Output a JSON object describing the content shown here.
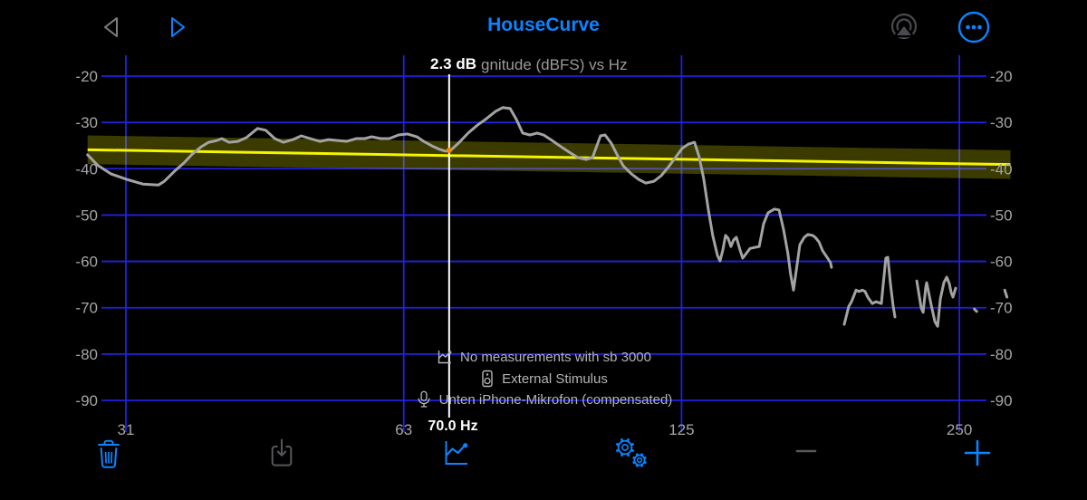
{
  "nav": {
    "title": "HouseCurve",
    "icons": [
      "back-triangle-icon",
      "play-triangle-icon",
      "airplay-icon",
      "more-ellipsis-icon"
    ]
  },
  "cursor_readout": {
    "delta": "2.3 dB",
    "freq": "70.0 Hz"
  },
  "annotations": [
    {
      "icon": "chart-line-icon",
      "text": "No measurements with sb 3000"
    },
    {
      "icon": "speaker-icon",
      "text": "External Stimulus"
    },
    {
      "icon": "microphone-icon",
      "text": "Unten iPhone-Mikrofon (compensated)"
    }
  ],
  "toolbar": [
    {
      "name": "delete",
      "icon": "trash-icon",
      "color": "#0a84ff"
    },
    {
      "name": "export",
      "icon": "export-download-icon",
      "color": "#58585c"
    },
    {
      "name": "chart",
      "icon": "chart-button-icon",
      "color": "#0a84ff"
    },
    {
      "name": "settings",
      "icon": "gears-icon",
      "color": "#0a84ff"
    },
    {
      "name": "zoom-out",
      "icon": "minus-icon",
      "color": "#58585c"
    },
    {
      "name": "zoom-in",
      "icon": "plus-icon",
      "color": "#0a84ff"
    }
  ],
  "colors": {
    "accent": "#0a84ff",
    "grid": "#2121e0",
    "curve": "#a3a3a3",
    "target": "#f5f500",
    "band": "rgba(255,255,0,0.23)",
    "cursor_line": "#ffffff",
    "cursor_dot": "#ff8800",
    "axis_text": "#a5a5a8"
  },
  "chart_data": {
    "type": "line",
    "title": "Magnitude (dBFS) vs Hz",
    "xlabel": "Hz",
    "ylabel": "dBFS",
    "grid": true,
    "x_axis": {
      "scale": "log2",
      "range_hz": [
        28.4,
        284
      ],
      "ticks": [
        {
          "label": "31",
          "hz": 31.25
        },
        {
          "label": "63",
          "hz": 62.5
        },
        {
          "label": "125",
          "hz": 125
        },
        {
          "label": "250",
          "hz": 250
        }
      ]
    },
    "y_axis": {
      "range_db": [
        -92.7,
        -15.5
      ],
      "ticks": [
        -20,
        -30,
        -40,
        -50,
        -60,
        -70,
        -80,
        -90
      ]
    },
    "cursor": {
      "hz": 70.0,
      "db_at_cursor": -36.0,
      "delta_db_label": "2.3 dB",
      "freq_label": "70.0 Hz"
    },
    "target": {
      "name": "house-curve-target",
      "start": {
        "hz": 28.4,
        "db": -35.9
      },
      "end": {
        "hz": 284,
        "db": -39.1
      },
      "tolerance_db": 3.1
    },
    "measurement": {
      "name": "magnitude-response",
      "segments": [
        [
          [
            28.4,
            -37.0
          ],
          [
            29.1,
            -39.2
          ],
          [
            30.1,
            -41.1
          ],
          [
            31.3,
            -42.3
          ],
          [
            32.6,
            -43.3
          ],
          [
            33.9,
            -43.5
          ],
          [
            34.4,
            -42.7
          ],
          [
            35.3,
            -40.5
          ],
          [
            36.1,
            -38.8
          ],
          [
            36.9,
            -36.8
          ],
          [
            37.7,
            -35.3
          ],
          [
            38.4,
            -34.3
          ],
          [
            39.2,
            -33.9
          ],
          [
            39.7,
            -33.5
          ],
          [
            40.4,
            -34.3
          ],
          [
            41.3,
            -34.1
          ],
          [
            42.2,
            -33.3
          ],
          [
            43.4,
            -31.3
          ],
          [
            44.3,
            -31.7
          ],
          [
            45.3,
            -33.5
          ],
          [
            46.3,
            -34.3
          ],
          [
            47.4,
            -33.7
          ],
          [
            48.4,
            -32.9
          ],
          [
            49.5,
            -33.5
          ],
          [
            50.7,
            -34.1
          ],
          [
            51.8,
            -33.7
          ],
          [
            53.0,
            -33.9
          ],
          [
            54.2,
            -34.1
          ],
          [
            55.5,
            -33.5
          ],
          [
            56.7,
            -33.5
          ],
          [
            57.7,
            -33.1
          ],
          [
            59.0,
            -33.5
          ],
          [
            60.3,
            -33.5
          ],
          [
            61.7,
            -32.7
          ],
          [
            63.1,
            -32.5
          ],
          [
            64.6,
            -33.1
          ],
          [
            65.7,
            -34.1
          ],
          [
            67.1,
            -35.1
          ],
          [
            68.3,
            -35.8
          ],
          [
            69.4,
            -36.2
          ],
          [
            70.3,
            -36.0
          ],
          [
            71.8,
            -34.3
          ],
          [
            73.4,
            -32.3
          ],
          [
            75.1,
            -30.6
          ],
          [
            76.8,
            -29.2
          ],
          [
            78.6,
            -27.6
          ],
          [
            80.0,
            -26.8
          ],
          [
            81.5,
            -27.0
          ],
          [
            82.8,
            -29.4
          ],
          [
            84.1,
            -32.3
          ],
          [
            85.6,
            -32.7
          ],
          [
            87.2,
            -32.3
          ],
          [
            88.6,
            -32.7
          ],
          [
            90.2,
            -33.7
          ],
          [
            92.3,
            -35.1
          ],
          [
            94.4,
            -36.4
          ],
          [
            96.5,
            -37.6
          ],
          [
            98.5,
            -38.0
          ],
          [
            100.1,
            -37.6
          ],
          [
            102.1,
            -32.9
          ],
          [
            103.3,
            -32.7
          ],
          [
            104.9,
            -34.5
          ],
          [
            106.6,
            -37.2
          ],
          [
            108.1,
            -39.4
          ],
          [
            110.3,
            -41.1
          ],
          [
            112.3,
            -42.3
          ],
          [
            114.3,
            -43.1
          ],
          [
            116.7,
            -42.7
          ],
          [
            118.8,
            -41.5
          ],
          [
            121.0,
            -39.6
          ],
          [
            123.5,
            -37.2
          ],
          [
            125.2,
            -35.6
          ],
          [
            127.1,
            -34.7
          ],
          [
            129.1,
            -34.3
          ],
          [
            130.6,
            -37.4
          ],
          [
            132.1,
            -42.1
          ],
          [
            133.6,
            -48.6
          ],
          [
            135.1,
            -54.4
          ],
          [
            136.7,
            -58.7
          ],
          [
            137.6,
            -59.9
          ],
          [
            138.5,
            -57.7
          ],
          [
            139.5,
            -54.4
          ],
          [
            140.4,
            -55.0
          ],
          [
            141.4,
            -56.8
          ],
          [
            142.3,
            -55.4
          ],
          [
            143.3,
            -54.8
          ],
          [
            144.6,
            -57.4
          ],
          [
            145.6,
            -59.3
          ],
          [
            146.9,
            -58.3
          ],
          [
            148.3,
            -57.2
          ],
          [
            150.0,
            -57.0
          ],
          [
            151.7,
            -56.8
          ],
          [
            153.4,
            -51.9
          ],
          [
            155.1,
            -49.5
          ],
          [
            157.6,
            -48.7
          ],
          [
            159.4,
            -48.9
          ],
          [
            161.2,
            -53.0
          ],
          [
            163.0,
            -58.3
          ],
          [
            164.1,
            -62.8
          ],
          [
            165.3,
            -66.2
          ],
          [
            166.7,
            -60.9
          ],
          [
            167.9,
            -56.4
          ],
          [
            169.8,
            -54.8
          ],
          [
            171.3,
            -54.2
          ],
          [
            173.3,
            -54.4
          ],
          [
            174.5,
            -54.8
          ],
          [
            176.1,
            -55.8
          ],
          [
            177.7,
            -57.7
          ],
          [
            179.7,
            -59.1
          ],
          [
            181.3,
            -60.3
          ],
          [
            181.7,
            -61.3
          ]
        ],
        [
          [
            187.6,
            -73.6
          ],
          [
            189.7,
            -69.7
          ],
          [
            191.0,
            -68.7
          ],
          [
            193.2,
            -66.2
          ],
          [
            194.5,
            -66.5
          ],
          [
            196.3,
            -66.2
          ],
          [
            197.6,
            -66.5
          ],
          [
            198.9,
            -67.7
          ],
          [
            201.2,
            -69.1
          ],
          [
            203.0,
            -68.7
          ],
          [
            205.8,
            -69.1
          ],
          [
            206.7,
            -65.2
          ],
          [
            208.1,
            -59.3
          ],
          [
            209.1,
            -59.1
          ],
          [
            210.5,
            -64.8
          ],
          [
            211.9,
            -69.5
          ],
          [
            212.9,
            -72.0
          ]
        ],
        [
          [
            224.8,
            -64.2
          ],
          [
            226.3,
            -67.7
          ],
          [
            227.3,
            -70.1
          ],
          [
            228.4,
            -71.0
          ],
          [
            229.9,
            -65.6
          ],
          [
            230.4,
            -64.6
          ],
          [
            233.1,
            -69.5
          ],
          [
            235.2,
            -73.0
          ],
          [
            236.8,
            -74.0
          ],
          [
            238.4,
            -68.1
          ],
          [
            240.5,
            -64.6
          ],
          [
            242.2,
            -63.4
          ],
          [
            243.8,
            -64.8
          ],
          [
            244.9,
            -66.7
          ],
          [
            246.0,
            -67.7
          ],
          [
            247.7,
            -65.8
          ]
        ],
        [
          [
            259.5,
            -70.3
          ],
          [
            261.0,
            -70.8
          ]
        ],
        [
          [
            280.0,
            -66.2
          ],
          [
            281.5,
            -67.7
          ]
        ]
      ]
    }
  }
}
